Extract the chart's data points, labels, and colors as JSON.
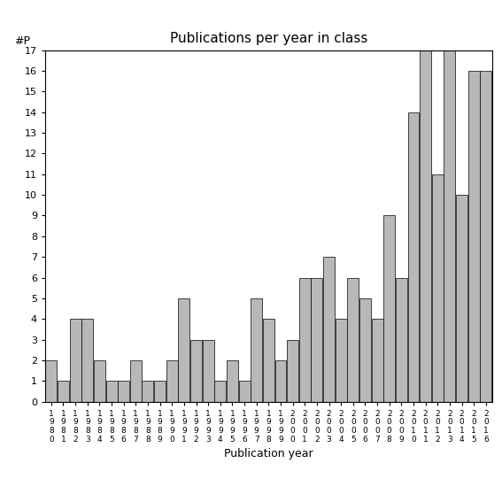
{
  "title": "Publications per year in class",
  "xlabel": "Publication year",
  "ylabel_text": "#P",
  "bar_color": "#b8b8b8",
  "edge_color": "#000000",
  "background_color": "#ffffff",
  "ylim": [
    0,
    17
  ],
  "yticks": [
    0,
    1,
    2,
    3,
    4,
    5,
    6,
    7,
    8,
    9,
    10,
    11,
    12,
    13,
    14,
    15,
    16,
    17
  ],
  "years": [
    "1980",
    "1981",
    "1982",
    "1983",
    "1984",
    "1985",
    "1986",
    "1987",
    "1988",
    "1989",
    "1990",
    "1991",
    "1992",
    "1993",
    "1994",
    "1995",
    "1996",
    "1997",
    "1998",
    "1999",
    "2000",
    "2001",
    "2002",
    "2003",
    "2004",
    "2005",
    "2006",
    "2007",
    "2008",
    "2009",
    "2010",
    "2011",
    "2012",
    "2013",
    "2014",
    "2015",
    "2016"
  ],
  "values": [
    2,
    1,
    4,
    4,
    2,
    1,
    1,
    2,
    1,
    1,
    2,
    5,
    3,
    3,
    1,
    2,
    1,
    5,
    4,
    2,
    3,
    6,
    6,
    7,
    4,
    6,
    5,
    4,
    9,
    6,
    14,
    17,
    11,
    17,
    10,
    16,
    16
  ]
}
